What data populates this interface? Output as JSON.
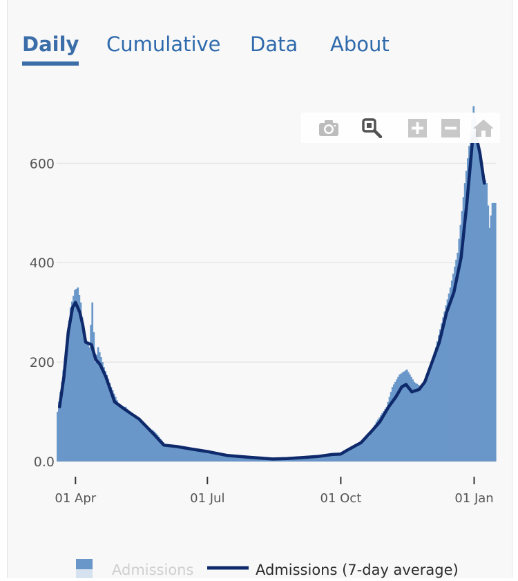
{
  "tabs": [
    {
      "label": "Daily",
      "active": true
    },
    {
      "label": "Cumulative",
      "active": false
    },
    {
      "label": "Data",
      "active": false
    },
    {
      "label": "About",
      "active": false
    }
  ],
  "modebar": {
    "icons": [
      "camera-icon",
      "zoom-icon",
      "zoom-in-icon",
      "zoom-out-icon",
      "home-icon"
    ]
  },
  "colors": {
    "bars": "#6a97c9",
    "line": "#0f2a6b",
    "accent": "#3b6da8",
    "grid": "#e6e6e6",
    "text": "#555555"
  },
  "chart_data": {
    "type": "bar",
    "title": "",
    "xlabel": "",
    "ylabel": "",
    "ylim": [
      0,
      720
    ],
    "yticks": [
      {
        "value": 0,
        "label": "0.0"
      },
      {
        "value": 200,
        "label": "200"
      },
      {
        "value": 400,
        "label": "400"
      },
      {
        "value": 600,
        "label": "600"
      }
    ],
    "xticks": [
      {
        "date": "2020-04-01",
        "label": "01 Apr"
      },
      {
        "date": "2020-07-01",
        "label": "01 Jul"
      },
      {
        "date": "2020-10-01",
        "label": "01 Oct"
      },
      {
        "date": "2021-01-01",
        "label": "01 Jan"
      }
    ],
    "x_range": [
      "2020-03-19",
      "2021-01-16"
    ],
    "grid": true,
    "legend_position": "bottom",
    "series": [
      {
        "name": "Admissions",
        "kind": "bar",
        "points": [
          [
            "2020-03-19",
            100
          ],
          [
            "2020-03-22",
            160
          ],
          [
            "2020-03-25",
            230
          ],
          [
            "2020-03-28",
            310
          ],
          [
            "2020-03-31",
            345
          ],
          [
            "2020-04-02",
            350
          ],
          [
            "2020-04-04",
            320
          ],
          [
            "2020-04-06",
            260
          ],
          [
            "2020-04-08",
            240
          ],
          [
            "2020-04-10",
            230
          ],
          [
            "2020-04-12",
            320
          ],
          [
            "2020-04-14",
            200
          ],
          [
            "2020-04-16",
            230
          ],
          [
            "2020-04-20",
            190
          ],
          [
            "2020-04-25",
            150
          ],
          [
            "2020-05-01",
            110
          ],
          [
            "2020-05-05",
            110
          ],
          [
            "2020-05-10",
            90
          ],
          [
            "2020-05-15",
            80
          ],
          [
            "2020-05-20",
            70
          ],
          [
            "2020-05-25",
            60
          ],
          [
            "2020-06-01",
            35
          ],
          [
            "2020-06-10",
            30
          ],
          [
            "2020-06-20",
            25
          ],
          [
            "2020-07-01",
            20
          ],
          [
            "2020-07-15",
            15
          ],
          [
            "2020-08-01",
            10
          ],
          [
            "2020-08-15",
            6
          ],
          [
            "2020-08-25",
            5
          ],
          [
            "2020-09-05",
            7
          ],
          [
            "2020-09-15",
            10
          ],
          [
            "2020-09-25",
            12
          ],
          [
            "2020-10-01",
            15
          ],
          [
            "2020-10-10",
            30
          ],
          [
            "2020-10-20",
            50
          ],
          [
            "2020-10-25",
            80
          ],
          [
            "2020-11-01",
            110
          ],
          [
            "2020-11-05",
            150
          ],
          [
            "2020-11-10",
            175
          ],
          [
            "2020-11-15",
            185
          ],
          [
            "2020-11-20",
            160
          ],
          [
            "2020-11-25",
            150
          ],
          [
            "2020-12-01",
            190
          ],
          [
            "2020-12-05",
            230
          ],
          [
            "2020-12-10",
            290
          ],
          [
            "2020-12-15",
            350
          ],
          [
            "2020-12-20",
            420
          ],
          [
            "2020-12-25",
            560
          ],
          [
            "2020-12-29",
            660
          ],
          [
            "2020-12-31",
            715
          ],
          [
            "2021-01-03",
            640
          ],
          [
            "2021-01-06",
            580
          ],
          [
            "2021-01-09",
            560
          ],
          [
            "2021-01-11",
            470
          ],
          [
            "2021-01-13",
            520
          ]
        ]
      },
      {
        "name": "Admissions (7-day average)",
        "kind": "line",
        "points": [
          [
            "2020-03-21",
            110
          ],
          [
            "2020-03-24",
            170
          ],
          [
            "2020-03-27",
            260
          ],
          [
            "2020-03-30",
            310
          ],
          [
            "2020-04-01",
            320
          ],
          [
            "2020-04-04",
            300
          ],
          [
            "2020-04-06",
            275
          ],
          [
            "2020-04-08",
            240
          ],
          [
            "2020-04-12",
            235
          ],
          [
            "2020-04-15",
            205
          ],
          [
            "2020-04-18",
            195
          ],
          [
            "2020-04-22",
            170
          ],
          [
            "2020-04-28",
            120
          ],
          [
            "2020-05-05",
            105
          ],
          [
            "2020-05-10",
            95
          ],
          [
            "2020-05-15",
            85
          ],
          [
            "2020-05-20",
            70
          ],
          [
            "2020-05-25",
            55
          ],
          [
            "2020-06-01",
            33
          ],
          [
            "2020-06-10",
            30
          ],
          [
            "2020-06-20",
            25
          ],
          [
            "2020-07-01",
            20
          ],
          [
            "2020-07-15",
            12
          ],
          [
            "2020-08-01",
            8
          ],
          [
            "2020-08-15",
            5
          ],
          [
            "2020-08-25",
            6
          ],
          [
            "2020-09-05",
            8
          ],
          [
            "2020-09-15",
            10
          ],
          [
            "2020-09-25",
            14
          ],
          [
            "2020-10-01",
            15
          ],
          [
            "2020-10-05",
            22
          ],
          [
            "2020-10-10",
            30
          ],
          [
            "2020-10-15",
            38
          ],
          [
            "2020-10-22",
            60
          ],
          [
            "2020-10-28",
            80
          ],
          [
            "2020-11-03",
            110
          ],
          [
            "2020-11-08",
            130
          ],
          [
            "2020-11-12",
            150
          ],
          [
            "2020-11-15",
            155
          ],
          [
            "2020-11-19",
            140
          ],
          [
            "2020-11-24",
            145
          ],
          [
            "2020-11-28",
            160
          ],
          [
            "2020-12-03",
            200
          ],
          [
            "2020-12-08",
            240
          ],
          [
            "2020-12-13",
            300
          ],
          [
            "2020-12-18",
            340
          ],
          [
            "2020-12-23",
            410
          ],
          [
            "2020-12-27",
            520
          ],
          [
            "2020-12-31",
            650
          ],
          [
            "2021-01-02",
            660
          ],
          [
            "2021-01-05",
            620
          ],
          [
            "2021-01-08",
            560
          ]
        ]
      }
    ]
  }
}
